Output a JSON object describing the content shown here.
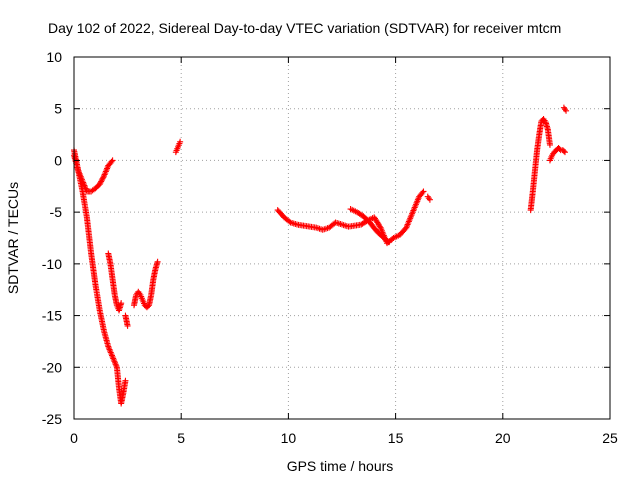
{
  "chart_data": {
    "type": "scatter",
    "title": "Day 102 of 2022, Sidereal Day-to-day VTEC variation (SDTVAR) for receiver mtcm",
    "xlabel": "GPS time / hours",
    "ylabel": "SDTVAR / TECUs",
    "xlim": [
      0,
      25
    ],
    "ylim": [
      -25,
      10
    ],
    "xticks": [
      0,
      5,
      10,
      15,
      20,
      25
    ],
    "yticks": [
      -25,
      -20,
      -15,
      -10,
      -5,
      0,
      5,
      10
    ],
    "grid": true,
    "marker": "plus",
    "color": "#ff0000",
    "series": [
      {
        "name": "SDTVAR",
        "x": [],
        "y": []
      }
    ],
    "segments": [
      {
        "x": [
          0.0,
          0.2,
          0.4,
          0.6,
          0.8,
          1.0,
          1.2,
          1.4,
          1.6,
          1.8
        ],
        "y": [
          1.0,
          -1.0,
          -2.0,
          -3.0,
          -3.0,
          -2.7,
          -2.3,
          -1.5,
          -0.5,
          0.0
        ]
      },
      {
        "x": [
          0.0,
          0.2,
          0.4,
          0.6,
          0.8,
          1.0,
          1.2,
          1.4,
          1.6,
          1.8,
          2.0,
          2.1,
          2.2,
          2.3,
          2.4
        ],
        "y": [
          0.5,
          -1.0,
          -3.0,
          -5.5,
          -9.0,
          -12.0,
          -14.5,
          -16.5,
          -18.0,
          -19.0,
          -20.0,
          -22.0,
          -23.5,
          -22.5,
          -21.3
        ]
      },
      {
        "x": [
          1.6,
          1.7,
          1.8,
          1.9,
          2.0,
          2.1,
          2.2
        ],
        "y": [
          -9.0,
          -10.0,
          -11.5,
          -13.0,
          -14.0,
          -14.5,
          -13.8
        ]
      },
      {
        "x": [
          2.4,
          2.5
        ],
        "y": [
          -15.0,
          -16.0
        ]
      },
      {
        "x": [
          2.8,
          2.9,
          3.0,
          3.1,
          3.2,
          3.3,
          3.4,
          3.5,
          3.6,
          3.7,
          3.8,
          3.9
        ],
        "y": [
          -14.0,
          -13.0,
          -12.7,
          -13.0,
          -13.5,
          -14.0,
          -14.2,
          -14.0,
          -13.0,
          -11.5,
          -10.5,
          -9.8
        ]
      },
      {
        "x": [
          4.75,
          4.85,
          4.95
        ],
        "y": [
          0.8,
          1.3,
          1.8
        ]
      },
      {
        "x": [
          9.5,
          9.8,
          10.1,
          10.4,
          10.7,
          11.0,
          11.3,
          11.6,
          11.9,
          12.2,
          12.5,
          12.8,
          13.1,
          13.4,
          13.7,
          14.0,
          14.3,
          14.6,
          14.9,
          15.2,
          15.5,
          15.8,
          16.1,
          16.3
        ],
        "y": [
          -4.8,
          -5.5,
          -6.0,
          -6.2,
          -6.3,
          -6.4,
          -6.5,
          -6.7,
          -6.5,
          -6.0,
          -6.2,
          -6.4,
          -6.3,
          -6.2,
          -5.8,
          -5.5,
          -6.5,
          -8.0,
          -7.5,
          -7.2,
          -6.5,
          -5.0,
          -3.5,
          -3.0
        ]
      },
      {
        "x": [
          12.9,
          13.2,
          13.5,
          13.8,
          14.1,
          14.4,
          14.7
        ],
        "y": [
          -4.7,
          -5.0,
          -5.4,
          -6.0,
          -6.8,
          -7.4,
          -7.9
        ]
      },
      {
        "x": [
          16.5,
          16.6
        ],
        "y": [
          -3.5,
          -3.8
        ]
      },
      {
        "x": [
          21.3,
          21.4,
          21.5,
          21.6,
          21.7,
          21.8,
          21.9,
          22.0,
          22.1,
          22.2
        ],
        "y": [
          -4.8,
          -3.0,
          -1.0,
          1.0,
          2.5,
          3.8,
          4.0,
          3.7,
          3.0,
          1.5
        ]
      },
      {
        "x": [
          22.2,
          22.3,
          22.4,
          22.5,
          22.6,
          22.7,
          22.8,
          22.9
        ],
        "y": [
          0.0,
          0.5,
          0.8,
          1.0,
          1.2,
          1.0,
          1.0,
          0.8
        ]
      },
      {
        "x": [
          22.85,
          22.95
        ],
        "y": [
          5.1,
          4.8
        ]
      }
    ]
  }
}
